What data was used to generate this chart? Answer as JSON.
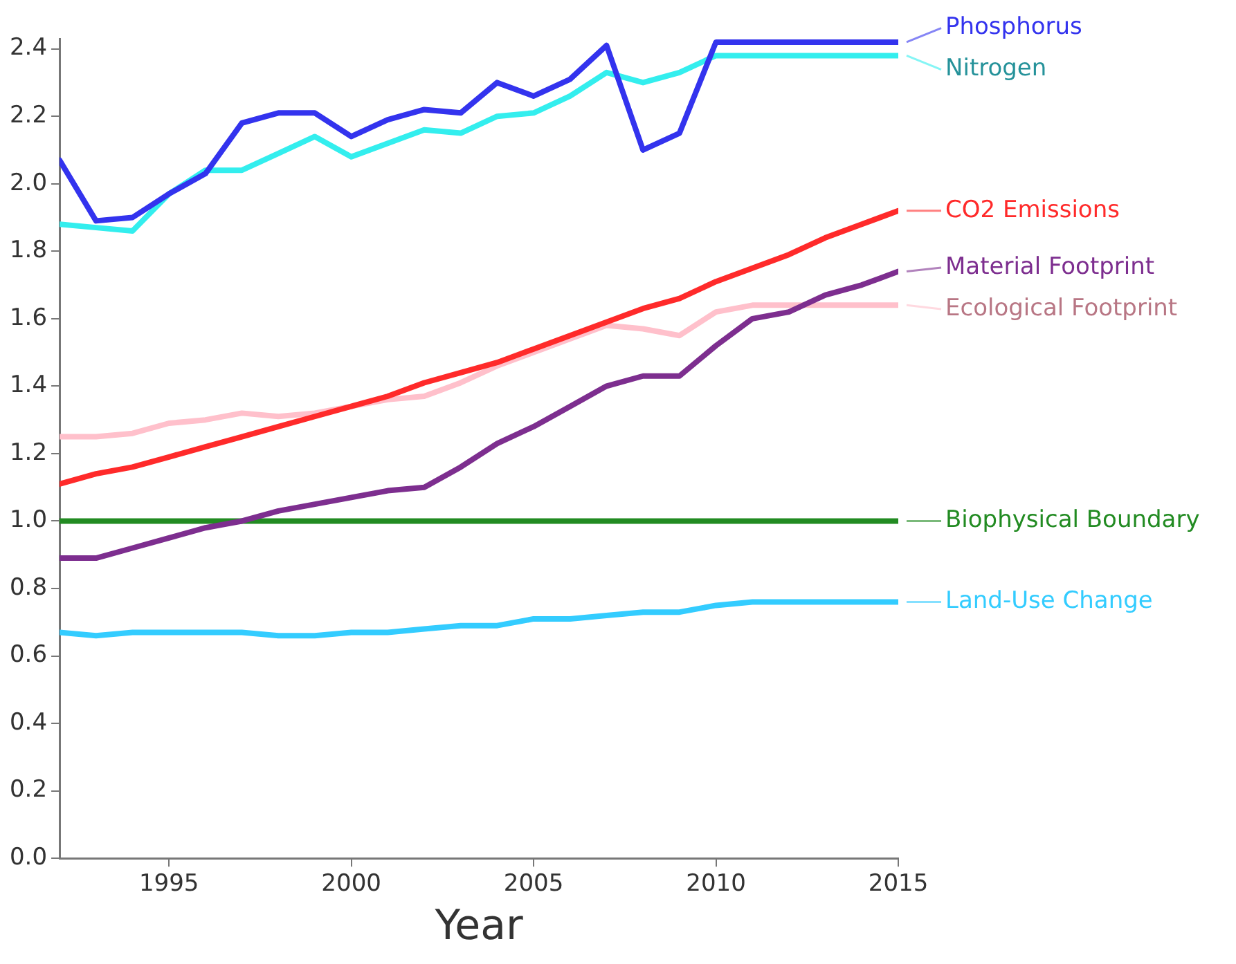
{
  "chart_data": {
    "type": "line",
    "xlabel": "Year",
    "x": [
      1992,
      1993,
      1994,
      1995,
      1996,
      1997,
      1998,
      1999,
      2000,
      2001,
      2002,
      2003,
      2004,
      2005,
      2006,
      2007,
      2008,
      2009,
      2010,
      2011,
      2012,
      2013,
      2014,
      2015
    ],
    "xlim": [
      1992,
      2015
    ],
    "xticks": [
      1995,
      2000,
      2005,
      2010,
      2015
    ],
    "ylim": [
      0,
      2.43
    ],
    "legend": "right",
    "yticks": [
      {
        "value": 0,
        "label": "0.0"
      },
      {
        "value": 0.2,
        "label": "0.2"
      },
      {
        "value": 0.4,
        "label": "0.4"
      },
      {
        "value": 0.6,
        "label": "0.6"
      },
      {
        "value": 0.8,
        "label": "0.8"
      },
      {
        "value": 1,
        "label": "1.0"
      },
      {
        "value": 1.2,
        "label": "1.2"
      },
      {
        "value": 1.4,
        "label": "1.4"
      },
      {
        "value": 1.6,
        "label": "1.6"
      },
      {
        "value": 1.8,
        "label": "1.8"
      },
      {
        "value": 2,
        "label": "2.0"
      },
      {
        "value": 2.2,
        "label": "2.2"
      },
      {
        "value": 2.4,
        "label": "2.4"
      }
    ],
    "grid": false,
    "marker": "none",
    "line_style": "solid",
    "series": [
      {
        "name": "Phosphorus",
        "color": "#3333ee",
        "values": [
          2.07,
          1.89,
          1.9,
          1.97,
          2.03,
          2.18,
          2.21,
          2.21,
          2.14,
          2.19,
          2.22,
          2.21,
          2.3,
          2.26,
          2.31,
          2.41,
          2.1,
          2.15,
          2.42,
          2.42,
          2.42,
          2.42,
          2.42,
          2.42
        ]
      },
      {
        "name": "Nitrogen",
        "color": "#33eeee",
        "values": [
          1.88,
          1.87,
          1.86,
          1.97,
          2.04,
          2.04,
          2.09,
          2.14,
          2.08,
          2.12,
          2.16,
          2.15,
          2.2,
          2.21,
          2.26,
          2.33,
          2.3,
          2.33,
          2.38,
          2.38,
          2.38,
          2.38,
          2.38,
          2.38
        ]
      },
      {
        "name": "CO2 Emissions",
        "color": "#ff2a2a",
        "values": [
          1.11,
          1.14,
          1.16,
          1.19,
          1.22,
          1.25,
          1.28,
          1.31,
          1.34,
          1.37,
          1.41,
          1.44,
          1.47,
          1.51,
          1.55,
          1.59,
          1.63,
          1.66,
          1.71,
          1.75,
          1.79,
          1.84,
          1.88,
          1.92
        ]
      },
      {
        "name": "Material Footprint",
        "color": "#7d2e8f",
        "values": [
          0.89,
          0.89,
          0.92,
          0.95,
          0.98,
          1.0,
          1.03,
          1.05,
          1.07,
          1.09,
          1.1,
          1.16,
          1.23,
          1.28,
          1.34,
          1.4,
          1.43,
          1.43,
          1.52,
          1.6,
          1.62,
          1.67,
          1.7,
          1.74
        ]
      },
      {
        "name": "Ecological Footprint",
        "color": "#ffc0cb",
        "values": [
          1.25,
          1.25,
          1.26,
          1.29,
          1.3,
          1.32,
          1.31,
          1.32,
          1.34,
          1.36,
          1.37,
          1.41,
          1.46,
          1.5,
          1.54,
          1.58,
          1.57,
          1.55,
          1.62,
          1.64,
          1.64,
          1.64,
          1.64,
          1.64
        ]
      },
      {
        "name": "Biophysical Boundary",
        "color": "#228b22",
        "values": [
          1,
          1,
          1,
          1,
          1,
          1,
          1,
          1,
          1,
          1,
          1,
          1,
          1,
          1,
          1,
          1,
          1,
          1,
          1,
          1,
          1,
          1,
          1,
          1
        ]
      },
      {
        "name": "Land-Use Change",
        "color": "#33ccff",
        "values": [
          0.67,
          0.66,
          0.67,
          0.67,
          0.67,
          0.67,
          0.66,
          0.66,
          0.67,
          0.67,
          0.68,
          0.69,
          0.69,
          0.71,
          0.71,
          0.72,
          0.73,
          0.73,
          0.75,
          0.76,
          0.76,
          0.76,
          0.76,
          0.76
        ]
      }
    ]
  }
}
